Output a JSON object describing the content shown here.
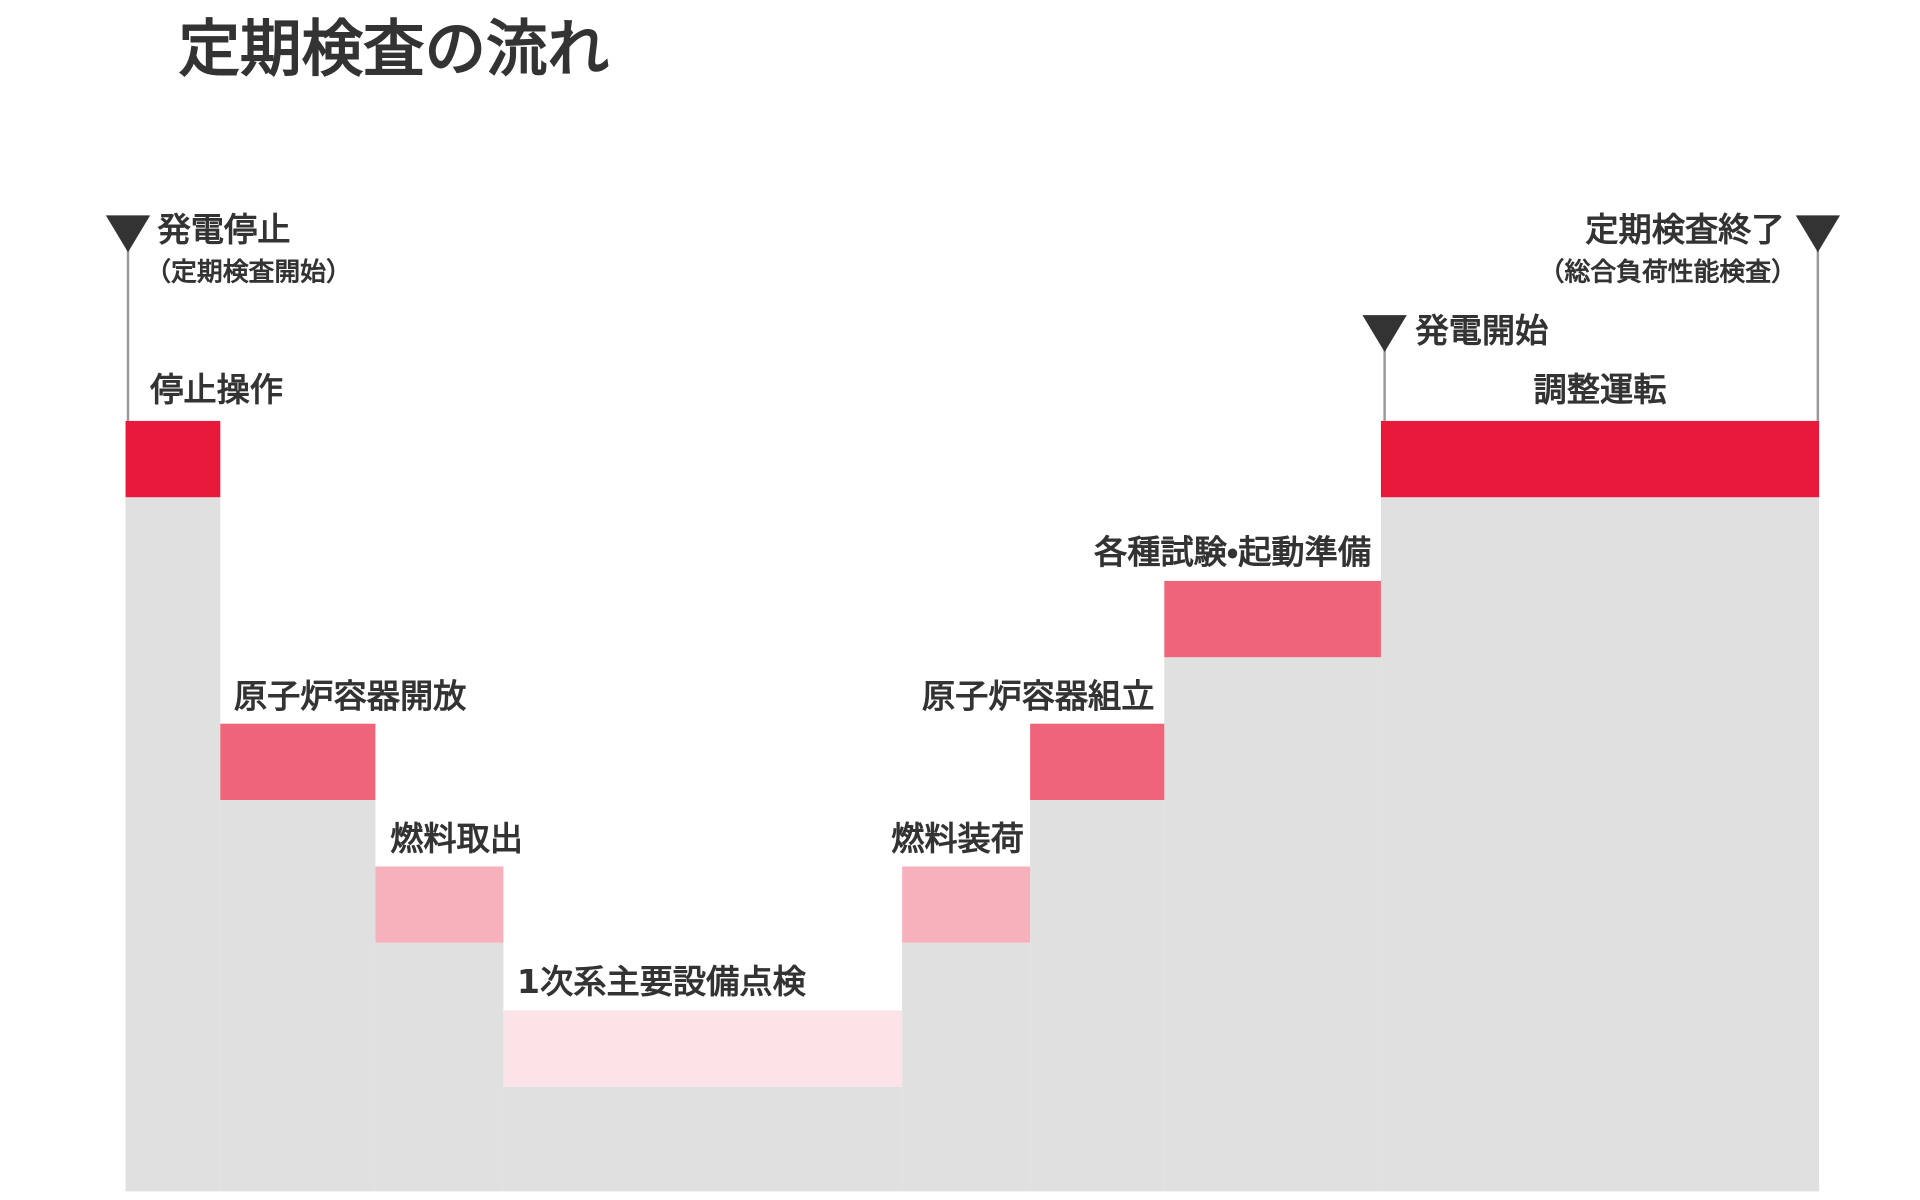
{
  "title": "定期検査の流れ",
  "steps": [
    "停止操作",
    "原子炉容器開放",
    "燃料取出",
    "1次系主要設備点検",
    "燃料装荷",
    "原子炉容器組立",
    "各種試験・起動準備",
    "調整運転"
  ],
  "milestones": [
    {
      "label": "発電停止",
      "sub": "（定期検査開始）"
    },
    {
      "label": "発電開始"
    },
    {
      "label": "定期検査終了",
      "sub": "（総合負荷性能検査）"
    }
  ]
}
